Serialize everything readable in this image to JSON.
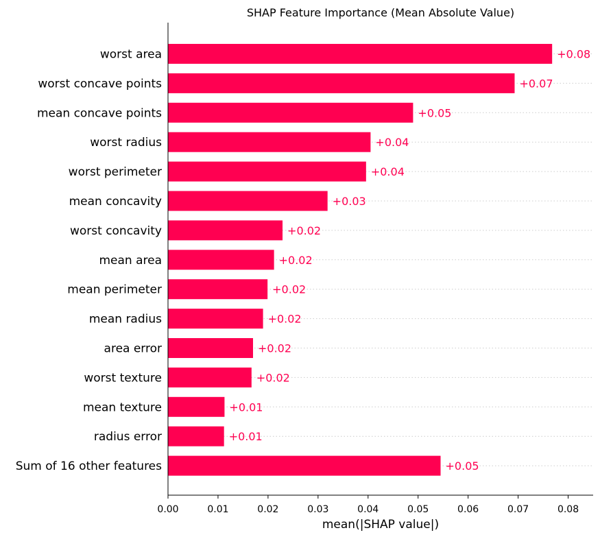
{
  "chart_data": {
    "type": "bar",
    "orientation": "horizontal",
    "title": "SHAP Feature Importance (Mean Absolute Value)",
    "xlabel": "mean(|SHAP value|)",
    "ylabel": "",
    "xlim": [
      0,
      0.085
    ],
    "xticks": [
      0.0,
      0.01,
      0.02,
      0.03,
      0.04,
      0.05,
      0.06,
      0.07,
      0.08
    ],
    "xtick_labels": [
      "0.00",
      "0.01",
      "0.02",
      "0.03",
      "0.04",
      "0.05",
      "0.06",
      "0.07",
      "0.08"
    ],
    "bar_color": "#ff0051",
    "grid": "horizontal dotted",
    "categories": [
      "worst area",
      "worst concave points",
      "mean concave points",
      "worst radius",
      "worst perimeter",
      "mean concavity",
      "worst concavity",
      "mean area",
      "mean perimeter",
      "mean radius",
      "area error",
      "worst texture",
      "mean texture",
      "radius error",
      "Sum of 16 other features"
    ],
    "values": [
      0.0768,
      0.0693,
      0.049,
      0.0405,
      0.0396,
      0.0319,
      0.0229,
      0.0212,
      0.0199,
      0.019,
      0.017,
      0.0167,
      0.0113,
      0.0112,
      0.0545
    ],
    "value_labels": [
      "+0.08",
      "+0.07",
      "+0.05",
      "+0.04",
      "+0.04",
      "+0.03",
      "+0.02",
      "+0.02",
      "+0.02",
      "+0.02",
      "+0.02",
      "+0.02",
      "+0.01",
      "+0.01",
      "+0.05"
    ]
  }
}
